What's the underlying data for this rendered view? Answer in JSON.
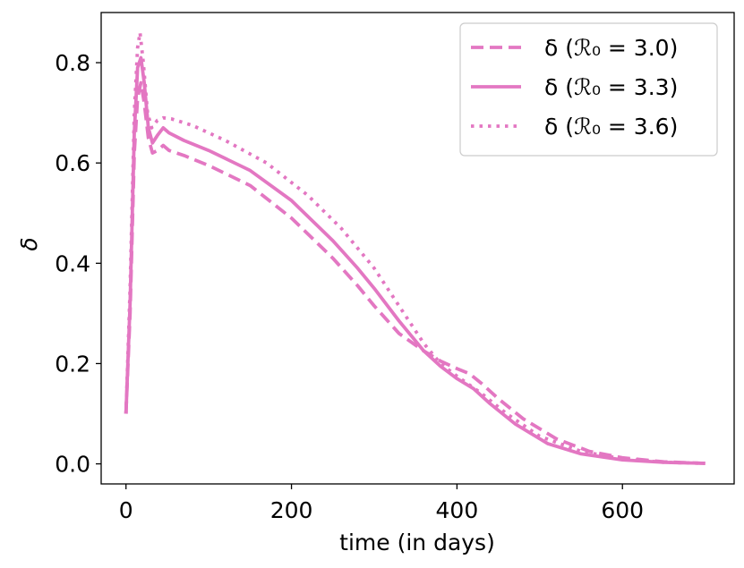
{
  "chart_data": {
    "type": "line",
    "title": "",
    "xlabel": "time (in days)",
    "ylabel": "δ",
    "xlim": [
      -30,
      735
    ],
    "ylim": [
      -0.04,
      0.9
    ],
    "x_ticks": [
      0,
      200,
      400,
      600
    ],
    "x_tick_labels": [
      "0",
      "200",
      "400",
      "600"
    ],
    "y_ticks": [
      0.0,
      0.2,
      0.4,
      0.6,
      0.8
    ],
    "y_tick_labels": [
      "0.0",
      "0.2",
      "0.4",
      "0.6",
      "0.8"
    ],
    "grid": false,
    "legend_position": "top-right",
    "series": [
      {
        "name": "δ (ℛ₀ = 3.0)",
        "color": "#e377c2",
        "linestyle": "dashed",
        "points": [
          [
            0,
            0.1
          ],
          [
            5,
            0.3
          ],
          [
            10,
            0.62
          ],
          [
            14,
            0.73
          ],
          [
            18,
            0.76
          ],
          [
            22,
            0.72
          ],
          [
            27,
            0.65
          ],
          [
            32,
            0.62
          ],
          [
            38,
            0.625
          ],
          [
            45,
            0.635
          ],
          [
            52,
            0.625
          ],
          [
            70,
            0.615
          ],
          [
            100,
            0.595
          ],
          [
            150,
            0.555
          ],
          [
            200,
            0.49
          ],
          [
            250,
            0.41
          ],
          [
            280,
            0.355
          ],
          [
            300,
            0.315
          ],
          [
            330,
            0.26
          ],
          [
            360,
            0.225
          ],
          [
            380,
            0.205
          ],
          [
            400,
            0.19
          ],
          [
            415,
            0.18
          ],
          [
            430,
            0.16
          ],
          [
            450,
            0.13
          ],
          [
            480,
            0.09
          ],
          [
            520,
            0.05
          ],
          [
            560,
            0.025
          ],
          [
            600,
            0.012
          ],
          [
            650,
            0.004
          ],
          [
            700,
            0.001
          ]
        ]
      },
      {
        "name": "δ (ℛ₀ = 3.3)",
        "color": "#e377c2",
        "linestyle": "solid",
        "points": [
          [
            0,
            0.1
          ],
          [
            5,
            0.32
          ],
          [
            10,
            0.66
          ],
          [
            14,
            0.79
          ],
          [
            18,
            0.81
          ],
          [
            22,
            0.76
          ],
          [
            27,
            0.67
          ],
          [
            32,
            0.64
          ],
          [
            38,
            0.655
          ],
          [
            45,
            0.67
          ],
          [
            52,
            0.66
          ],
          [
            70,
            0.645
          ],
          [
            100,
            0.625
          ],
          [
            150,
            0.585
          ],
          [
            200,
            0.525
          ],
          [
            250,
            0.445
          ],
          [
            280,
            0.39
          ],
          [
            300,
            0.35
          ],
          [
            330,
            0.285
          ],
          [
            360,
            0.225
          ],
          [
            380,
            0.195
          ],
          [
            400,
            0.17
          ],
          [
            420,
            0.15
          ],
          [
            440,
            0.12
          ],
          [
            470,
            0.08
          ],
          [
            510,
            0.04
          ],
          [
            550,
            0.02
          ],
          [
            600,
            0.008
          ],
          [
            650,
            0.003
          ],
          [
            700,
            0.001
          ]
        ]
      },
      {
        "name": "δ (ℛ₀ = 3.6)",
        "color": "#e377c2",
        "linestyle": "dotted",
        "points": [
          [
            0,
            0.1
          ],
          [
            5,
            0.35
          ],
          [
            10,
            0.7
          ],
          [
            14,
            0.83
          ],
          [
            17,
            0.86
          ],
          [
            21,
            0.8
          ],
          [
            26,
            0.7
          ],
          [
            31,
            0.67
          ],
          [
            38,
            0.685
          ],
          [
            45,
            0.69
          ],
          [
            55,
            0.688
          ],
          [
            80,
            0.675
          ],
          [
            120,
            0.645
          ],
          [
            170,
            0.6
          ],
          [
            220,
            0.535
          ],
          [
            260,
            0.47
          ],
          [
            300,
            0.39
          ],
          [
            330,
            0.315
          ],
          [
            360,
            0.24
          ],
          [
            380,
            0.2
          ],
          [
            400,
            0.175
          ],
          [
            430,
            0.14
          ],
          [
            460,
            0.1
          ],
          [
            500,
            0.055
          ],
          [
            550,
            0.025
          ],
          [
            600,
            0.01
          ],
          [
            650,
            0.003
          ],
          [
            700,
            0.001
          ]
        ]
      }
    ]
  }
}
